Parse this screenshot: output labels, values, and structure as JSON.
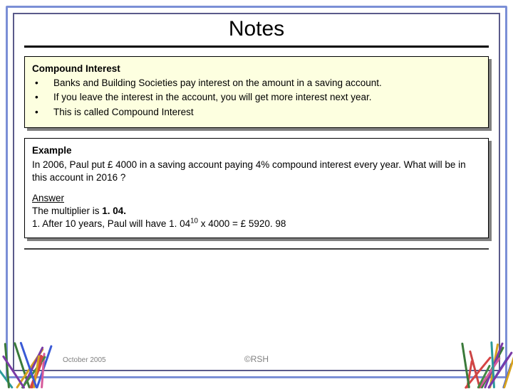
{
  "title": "Notes",
  "yellow_box": {
    "heading": "Compound Interest",
    "bullets": [
      "Banks and Building Societies pay interest on the amount in a saving account.",
      "If you leave the interest in the account, you will get more interest next year.",
      "This is called Compound Interest"
    ]
  },
  "white_box": {
    "example_label": "Example",
    "example_text": "In 2006, Paul put £ 4000 in a saving account paying 4% compound interest every year. What will be in this account in 2016 ?",
    "answer_label": "Answer",
    "answer_line1_pre": "The multiplier is ",
    "answer_line1_bold": "1. 04.",
    "answer_line2_pre": "1. After 10 years, Paul will have 1. 04",
    "answer_line2_exp": "10",
    "answer_line2_post": " x 4000 = £ 5920. 98"
  },
  "footer": {
    "date": "October 2005",
    "copyright": "©RSH"
  },
  "style": {
    "frame_outer_color": "#7b8fd6",
    "frame_inner_color": "#5a5a8a",
    "yellow_bg": "#fdffe0",
    "white_bg": "#ffffff",
    "shadow_color": "#808080",
    "stick_colors": [
      "#d64545",
      "#3a7a3a",
      "#d6a21f",
      "#3a5ad6",
      "#7a3aa6",
      "#d65a9a",
      "#2a9a9a",
      "#c44",
      "#484"
    ],
    "stick_count": 14
  }
}
